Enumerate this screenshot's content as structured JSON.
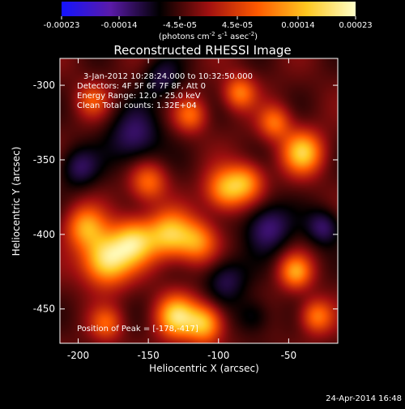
{
  "colorbar": {
    "tick_labels": [
      "-0.00023",
      "-0.00014",
      "-4.5e-05",
      "4.5e-05",
      "0.00014",
      "0.00023"
    ],
    "unit_label": "(photons cm",
    "unit_sup1": "-2",
    "unit_mid": " s",
    "unit_sup2": "-1",
    "unit_end": " asec",
    "unit_sup3": "-2",
    "unit_close": ")",
    "range": [
      -0.00023,
      0.00023
    ],
    "colors": [
      "#1414ff",
      "#5a1aa8",
      "#000000",
      "#a01010",
      "#ff5a00",
      "#ffc820",
      "#ffffc8"
    ]
  },
  "chart_data": {
    "type": "heatmap",
    "title": "Reconstructed RHESSI Image",
    "xlabel": "Heliocentric X (arcsec)",
    "ylabel": "Heliocentric Y (arcsec)",
    "xlim": [
      -213,
      -15
    ],
    "ylim": [
      -473,
      -282
    ],
    "x_ticks": [
      -200,
      -150,
      -100,
      -50
    ],
    "y_ticks": [
      -300,
      -350,
      -400,
      -450
    ],
    "info_lines": [
      "3-Jan-2012 10:28:24.000 to 10:32:50.000",
      "Detectors: 4F 5F 6F 7F 8F, Att 0",
      "Energy Range: 12.0 - 25.0 keV",
      "Clean     Total counts: 1.32E+04"
    ],
    "peak_label": "Position of Peak = [-178,-417]",
    "peak_position": [
      -178,
      -417
    ],
    "blobs": [
      {
        "x": -180,
        "y": -417,
        "amp": 0.00023,
        "sigma": 12
      },
      {
        "x": -160,
        "y": -405,
        "amp": 0.00019,
        "sigma": 11
      },
      {
        "x": -195,
        "y": -395,
        "amp": 0.00015,
        "sigma": 10
      },
      {
        "x": -135,
        "y": -400,
        "amp": 0.00018,
        "sigma": 11
      },
      {
        "x": -115,
        "y": -405,
        "amp": 0.00014,
        "sigma": 10
      },
      {
        "x": -130,
        "y": -455,
        "amp": 0.0002,
        "sigma": 10
      },
      {
        "x": -110,
        "y": -460,
        "amp": 0.00018,
        "sigma": 9
      },
      {
        "x": -150,
        "y": -365,
        "amp": 0.00012,
        "sigma": 9
      },
      {
        "x": -95,
        "y": -370,
        "amp": 0.00016,
        "sigma": 10
      },
      {
        "x": -80,
        "y": -365,
        "amp": 0.00013,
        "sigma": 9
      },
      {
        "x": -40,
        "y": -345,
        "amp": 0.00019,
        "sigma": 10
      },
      {
        "x": -60,
        "y": -325,
        "amp": 0.00012,
        "sigma": 8
      },
      {
        "x": -85,
        "y": -305,
        "amp": 0.00013,
        "sigma": 8
      },
      {
        "x": -120,
        "y": -320,
        "amp": 0.00011,
        "sigma": 8
      },
      {
        "x": -190,
        "y": -310,
        "amp": 9e-05,
        "sigma": 8
      },
      {
        "x": -45,
        "y": -425,
        "amp": 0.00015,
        "sigma": 8
      },
      {
        "x": -30,
        "y": -455,
        "amp": 0.00013,
        "sigma": 8
      },
      {
        "x": -180,
        "y": -460,
        "amp": 0.0001,
        "sigma": 8
      },
      {
        "x": -65,
        "y": -395,
        "amp": -0.0001,
        "sigma": 12
      },
      {
        "x": -160,
        "y": -335,
        "amp": -9e-05,
        "sigma": 14
      },
      {
        "x": -200,
        "y": -355,
        "amp": -8e-05,
        "sigma": 10
      },
      {
        "x": -95,
        "y": -430,
        "amp": -8e-05,
        "sigma": 11
      },
      {
        "x": -25,
        "y": -395,
        "amp": -9e-05,
        "sigma": 9
      },
      {
        "x": -140,
        "y": -295,
        "amp": -7e-05,
        "sigma": 10
      },
      {
        "x": -75,
        "y": -455,
        "amp": -6e-05,
        "sigma": 9
      }
    ]
  },
  "footer": {
    "timestamp": "24-Apr-2014 16:48"
  }
}
